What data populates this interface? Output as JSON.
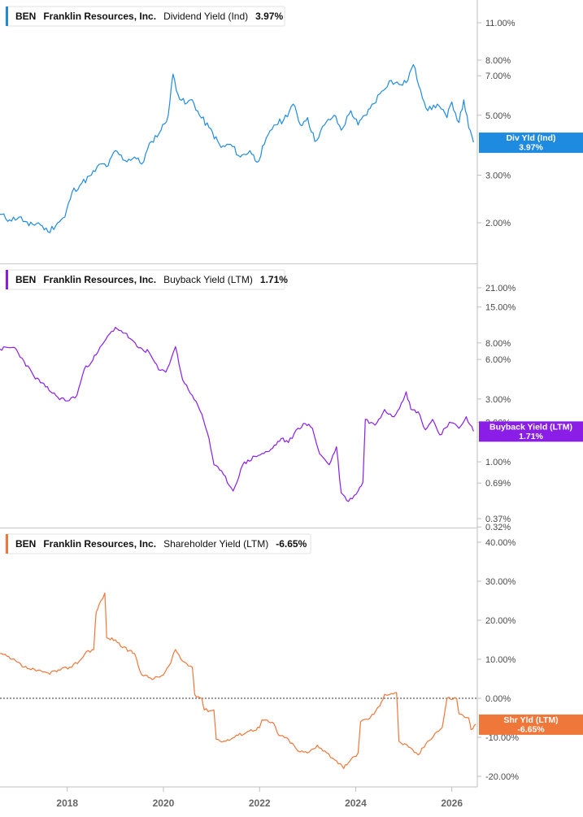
{
  "colors": {
    "dividend": "#1f8be0",
    "buyback": "#8a1ee6",
    "shareholder": "#f0773a",
    "axis": "#bdbdbd",
    "panel_divider": "#c7c7c7"
  },
  "chart_data": [
    {
      "type": "line",
      "legend": {
        "ticker": "BEN",
        "company": "Franklin Resources, Inc.",
        "metric": "Dividend Yield (Ind)",
        "value": "3.97%"
      },
      "flag": {
        "line1": "Div Yld (Ind)",
        "line2": "3.97%",
        "value": 3.97
      },
      "y_scale": "log",
      "y_ticks": [
        {
          "label": "11.00%",
          "value": 11
        },
        {
          "label": "8.00%",
          "value": 8
        },
        {
          "label": "7.00%",
          "value": 7
        },
        {
          "label": "5.00%",
          "value": 5
        },
        {
          "label": "3.00%",
          "value": 3
        },
        {
          "label": "2.00%",
          "value": 2
        }
      ],
      "series": [
        {
          "name": "Dividend Yield (Ind)",
          "points": [
            [
              2016.6,
              2.15
            ],
            [
              2016.8,
              2.05
            ],
            [
              2017.0,
              2.1
            ],
            [
              2017.2,
              1.95
            ],
            [
              2017.4,
              2.0
            ],
            [
              2017.6,
              1.85
            ],
            [
              2017.8,
              2.0
            ],
            [
              2017.95,
              2.1
            ],
            [
              2018.1,
              2.6
            ],
            [
              2018.3,
              2.8
            ],
            [
              2018.5,
              3.0
            ],
            [
              2018.7,
              3.3
            ],
            [
              2018.85,
              3.25
            ],
            [
              2019.0,
              3.7
            ],
            [
              2019.2,
              3.4
            ],
            [
              2019.4,
              3.5
            ],
            [
              2019.55,
              3.3
            ],
            [
              2019.75,
              4.0
            ],
            [
              2019.95,
              4.4
            ],
            [
              2020.1,
              5.0
            ],
            [
              2020.2,
              7.1
            ],
            [
              2020.3,
              6.0
            ],
            [
              2020.45,
              5.5
            ],
            [
              2020.6,
              5.7
            ],
            [
              2020.75,
              5.0
            ],
            [
              2020.95,
              4.5
            ],
            [
              2021.2,
              3.8
            ],
            [
              2021.4,
              3.9
            ],
            [
              2021.6,
              3.5
            ],
            [
              2021.8,
              3.7
            ],
            [
              2021.95,
              3.35
            ],
            [
              2022.1,
              3.9
            ],
            [
              2022.3,
              4.6
            ],
            [
              2022.5,
              4.8
            ],
            [
              2022.7,
              5.5
            ],
            [
              2022.85,
              4.6
            ],
            [
              2023.0,
              4.9
            ],
            [
              2023.15,
              4.0
            ],
            [
              2023.35,
              4.6
            ],
            [
              2023.55,
              5.0
            ],
            [
              2023.7,
              4.4
            ],
            [
              2023.9,
              5.2
            ],
            [
              2024.05,
              4.6
            ],
            [
              2024.3,
              5.3
            ],
            [
              2024.5,
              6.0
            ],
            [
              2024.7,
              6.7
            ],
            [
              2024.9,
              6.5
            ],
            [
              2025.05,
              6.6
            ],
            [
              2025.2,
              7.7
            ],
            [
              2025.35,
              6.2
            ],
            [
              2025.5,
              5.2
            ],
            [
              2025.7,
              5.5
            ],
            [
              2025.9,
              4.9
            ],
            [
              2026.0,
              5.6
            ],
            [
              2026.15,
              4.7
            ],
            [
              2026.25,
              5.7
            ],
            [
              2026.35,
              4.5
            ],
            [
              2026.45,
              3.97
            ]
          ]
        }
      ]
    },
    {
      "type": "line",
      "legend": {
        "ticker": "BEN",
        "company": "Franklin Resources, Inc.",
        "metric": "Buyback Yield (LTM)",
        "value": "1.71%"
      },
      "flag": {
        "line1": "Buyback Yield (LTM)",
        "line2": "1.71%",
        "value": 1.71
      },
      "y_scale": "log",
      "y_ticks": [
        {
          "label": "21.00%",
          "value": 21
        },
        {
          "label": "15.00%",
          "value": 15
        },
        {
          "label": "8.00%",
          "value": 8
        },
        {
          "label": "6.00%",
          "value": 6
        },
        {
          "label": "3.00%",
          "value": 3
        },
        {
          "label": "2.00%",
          "value": 2
        },
        {
          "label": "1.00%",
          "value": 1
        },
        {
          "label": "0.69%",
          "value": 0.69
        },
        {
          "label": "0.37%",
          "value": 0.37
        },
        {
          "label": "0.32%",
          "value": 0.32
        }
      ],
      "series": [
        {
          "name": "Buyback Yield (LTM)",
          "points": [
            [
              2016.6,
              7.2
            ],
            [
              2016.9,
              7.4
            ],
            [
              2017.1,
              5.8
            ],
            [
              2017.3,
              4.5
            ],
            [
              2017.55,
              3.7
            ],
            [
              2017.8,
              3.1
            ],
            [
              2018.0,
              2.9
            ],
            [
              2018.2,
              3.2
            ],
            [
              2018.35,
              5.0
            ],
            [
              2018.6,
              6.5
            ],
            [
              2018.8,
              8.5
            ],
            [
              2019.0,
              10.5
            ],
            [
              2019.2,
              9.5
            ],
            [
              2019.45,
              7.5
            ],
            [
              2019.7,
              6.8
            ],
            [
              2019.9,
              5.0
            ],
            [
              2020.05,
              4.8
            ],
            [
              2020.25,
              7.5
            ],
            [
              2020.4,
              4.2
            ],
            [
              2020.6,
              3.2
            ],
            [
              2020.8,
              2.3
            ],
            [
              2020.95,
              1.5
            ],
            [
              2021.05,
              0.95
            ],
            [
              2021.25,
              0.8
            ],
            [
              2021.45,
              0.6
            ],
            [
              2021.65,
              0.95
            ],
            [
              2021.9,
              1.1
            ],
            [
              2022.2,
              1.2
            ],
            [
              2022.45,
              1.5
            ],
            [
              2022.6,
              1.4
            ],
            [
              2022.8,
              1.8
            ],
            [
              2022.95,
              1.95
            ],
            [
              2023.1,
              1.8
            ],
            [
              2023.25,
              1.15
            ],
            [
              2023.45,
              0.95
            ],
            [
              2023.6,
              1.3
            ],
            [
              2023.7,
              0.58
            ],
            [
              2023.85,
              0.5
            ],
            [
              2024.05,
              0.6
            ],
            [
              2024.15,
              0.7
            ],
            [
              2024.2,
              2.1
            ],
            [
              2024.4,
              1.9
            ],
            [
              2024.6,
              2.5
            ],
            [
              2024.8,
              2.2
            ],
            [
              2024.95,
              2.8
            ],
            [
              2025.05,
              3.4
            ],
            [
              2025.15,
              2.5
            ],
            [
              2025.3,
              2.4
            ],
            [
              2025.45,
              1.75
            ],
            [
              2025.6,
              2.1
            ],
            [
              2025.75,
              1.6
            ],
            [
              2025.95,
              2.0
            ],
            [
              2026.15,
              1.8
            ],
            [
              2026.3,
              2.2
            ],
            [
              2026.45,
              1.71
            ]
          ]
        }
      ]
    },
    {
      "type": "line",
      "legend": {
        "ticker": "BEN",
        "company": "Franklin Resources, Inc.",
        "metric": "Shareholder Yield (LTM)",
        "value": "-6.65%"
      },
      "flag": {
        "line1": "Shr Yld (LTM)",
        "line2": "-6.65%",
        "value": -6.65
      },
      "y_scale": "linear",
      "ylim": [
        -22,
        42
      ],
      "zero_line": true,
      "y_ticks": [
        {
          "label": "40.00%",
          "value": 40
        },
        {
          "label": "30.00%",
          "value": 30
        },
        {
          "label": "20.00%",
          "value": 20
        },
        {
          "label": "10.00%",
          "value": 10
        },
        {
          "label": "0.00%",
          "value": 0
        },
        {
          "label": "-10.00%",
          "value": -10
        },
        {
          "label": "-20.00%",
          "value": -20
        }
      ],
      "series": [
        {
          "name": "Shareholder Yield (LTM)",
          "points": [
            [
              2016.6,
              11.5
            ],
            [
              2016.85,
              10.0
            ],
            [
              2017.1,
              8.0
            ],
            [
              2017.35,
              7.0
            ],
            [
              2017.6,
              6.5
            ],
            [
              2017.85,
              7.2
            ],
            [
              2018.05,
              8.0
            ],
            [
              2018.25,
              9.5
            ],
            [
              2018.4,
              12.0
            ],
            [
              2018.55,
              12.5
            ],
            [
              2018.6,
              22.0
            ],
            [
              2018.7,
              25.0
            ],
            [
              2018.78,
              27.0
            ],
            [
              2018.82,
              15.5
            ],
            [
              2019.0,
              15.0
            ],
            [
              2019.15,
              13.0
            ],
            [
              2019.4,
              11.5
            ],
            [
              2019.55,
              6.0
            ],
            [
              2019.8,
              5.0
            ],
            [
              2020.0,
              6.0
            ],
            [
              2020.15,
              9.0
            ],
            [
              2020.25,
              12.5
            ],
            [
              2020.4,
              9.5
            ],
            [
              2020.6,
              8.0
            ],
            [
              2020.65,
              1.0
            ],
            [
              2020.8,
              0.0
            ],
            [
              2020.85,
              -3.0
            ],
            [
              2021.05,
              -3.0
            ],
            [
              2021.1,
              -10.5
            ],
            [
              2021.3,
              -11.0
            ],
            [
              2021.55,
              -9.5
            ],
            [
              2021.75,
              -8.5
            ],
            [
              2022.0,
              -7.5
            ],
            [
              2022.05,
              -5.5
            ],
            [
              2022.3,
              -6.5
            ],
            [
              2022.4,
              -9.5
            ],
            [
              2022.6,
              -10.5
            ],
            [
              2022.8,
              -13.5
            ],
            [
              2023.0,
              -14.0
            ],
            [
              2023.2,
              -12.0
            ],
            [
              2023.4,
              -14.0
            ],
            [
              2023.6,
              -16.0
            ],
            [
              2023.75,
              -18.0
            ],
            [
              2023.85,
              -16.5
            ],
            [
              2024.05,
              -14.0
            ],
            [
              2024.1,
              -6.0
            ],
            [
              2024.3,
              -5.0
            ],
            [
              2024.5,
              -2.0
            ],
            [
              2024.6,
              1.0
            ],
            [
              2024.85,
              1.5
            ],
            [
              2024.9,
              -11.0
            ],
            [
              2025.1,
              -12.5
            ],
            [
              2025.3,
              -14.5
            ],
            [
              2025.5,
              -11.0
            ],
            [
              2025.65,
              -9.0
            ],
            [
              2025.8,
              -7.5
            ],
            [
              2025.9,
              0.0
            ],
            [
              2026.1,
              0.0
            ],
            [
              2026.15,
              -4.0
            ],
            [
              2026.35,
              -5.0
            ],
            [
              2026.4,
              -8.0
            ],
            [
              2026.5,
              -6.65
            ]
          ]
        }
      ]
    }
  ],
  "x_axis": {
    "ticks": [
      {
        "label": "2018",
        "value": 2018
      },
      {
        "label": "2020",
        "value": 2020
      },
      {
        "label": "2022",
        "value": 2022
      },
      {
        "label": "2024",
        "value": 2024
      },
      {
        "label": "2026",
        "value": 2026
      }
    ]
  }
}
